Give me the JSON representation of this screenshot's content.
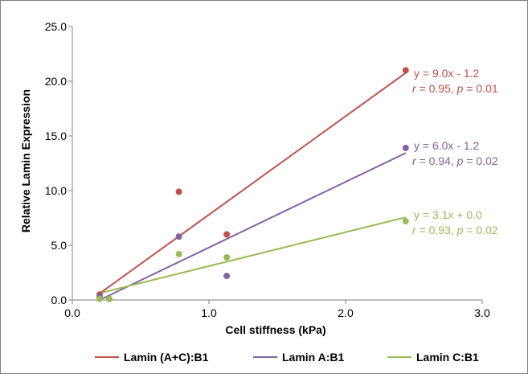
{
  "chart_data": {
    "type": "scatter",
    "xlabel": "Cell stiffness (kPa)",
    "ylabel": "Relative Lamin Expression",
    "xlim": [
      0,
      3
    ],
    "ylim": [
      0,
      25
    ],
    "xticks": [
      "0.0",
      "1.0",
      "2.0",
      "3.0"
    ],
    "yticks": [
      "0.0",
      "5.0",
      "10.0",
      "15.0",
      "20.0",
      "25.0"
    ],
    "grid": false,
    "legend_position": "bottom",
    "series": [
      {
        "name": "Lamin (A+C):B1",
        "color": "#c0504d",
        "x": [
          0.2,
          0.27,
          0.78,
          1.13,
          2.44
        ],
        "y": [
          0.5,
          0.1,
          9.9,
          6.0,
          21.0
        ],
        "trend": {
          "slope": 9.0,
          "intercept": -1.2,
          "x_range": [
            0.2,
            2.44
          ]
        },
        "annotation": {
          "line1": "y = 9.0x - 1.2",
          "r_label": "r",
          "r_value": "= 0.95,",
          "p_label": "p",
          "p_value": "= 0.01"
        }
      },
      {
        "name": "Lamin A:B1",
        "color": "#8064a2",
        "x": [
          0.2,
          0.27,
          0.78,
          1.13,
          2.44
        ],
        "y": [
          0.3,
          0.1,
          5.8,
          2.2,
          13.9
        ],
        "trend": {
          "slope": 6.0,
          "intercept": -1.2,
          "x_range": [
            0.2,
            2.44
          ]
        },
        "annotation": {
          "line1": "y = 6.0x - 1.2",
          "r_label": "r",
          "r_value": "= 0.94,",
          "p_label": "p",
          "p_value": "= 0.02"
        }
      },
      {
        "name": "Lamin C:B1",
        "color": "#9bbb59",
        "x": [
          0.2,
          0.27,
          0.78,
          1.13,
          2.44
        ],
        "y": [
          0.1,
          0.1,
          4.2,
          3.9,
          7.2
        ],
        "trend": {
          "slope": 3.1,
          "intercept": 0.0,
          "x_range": [
            0.2,
            2.44
          ]
        },
        "annotation": {
          "line1": "y = 3.1x + 0.0",
          "r_label": "r",
          "r_value": "= 0.93,",
          "p_label": "p",
          "p_value": "= 0.02"
        }
      }
    ]
  }
}
